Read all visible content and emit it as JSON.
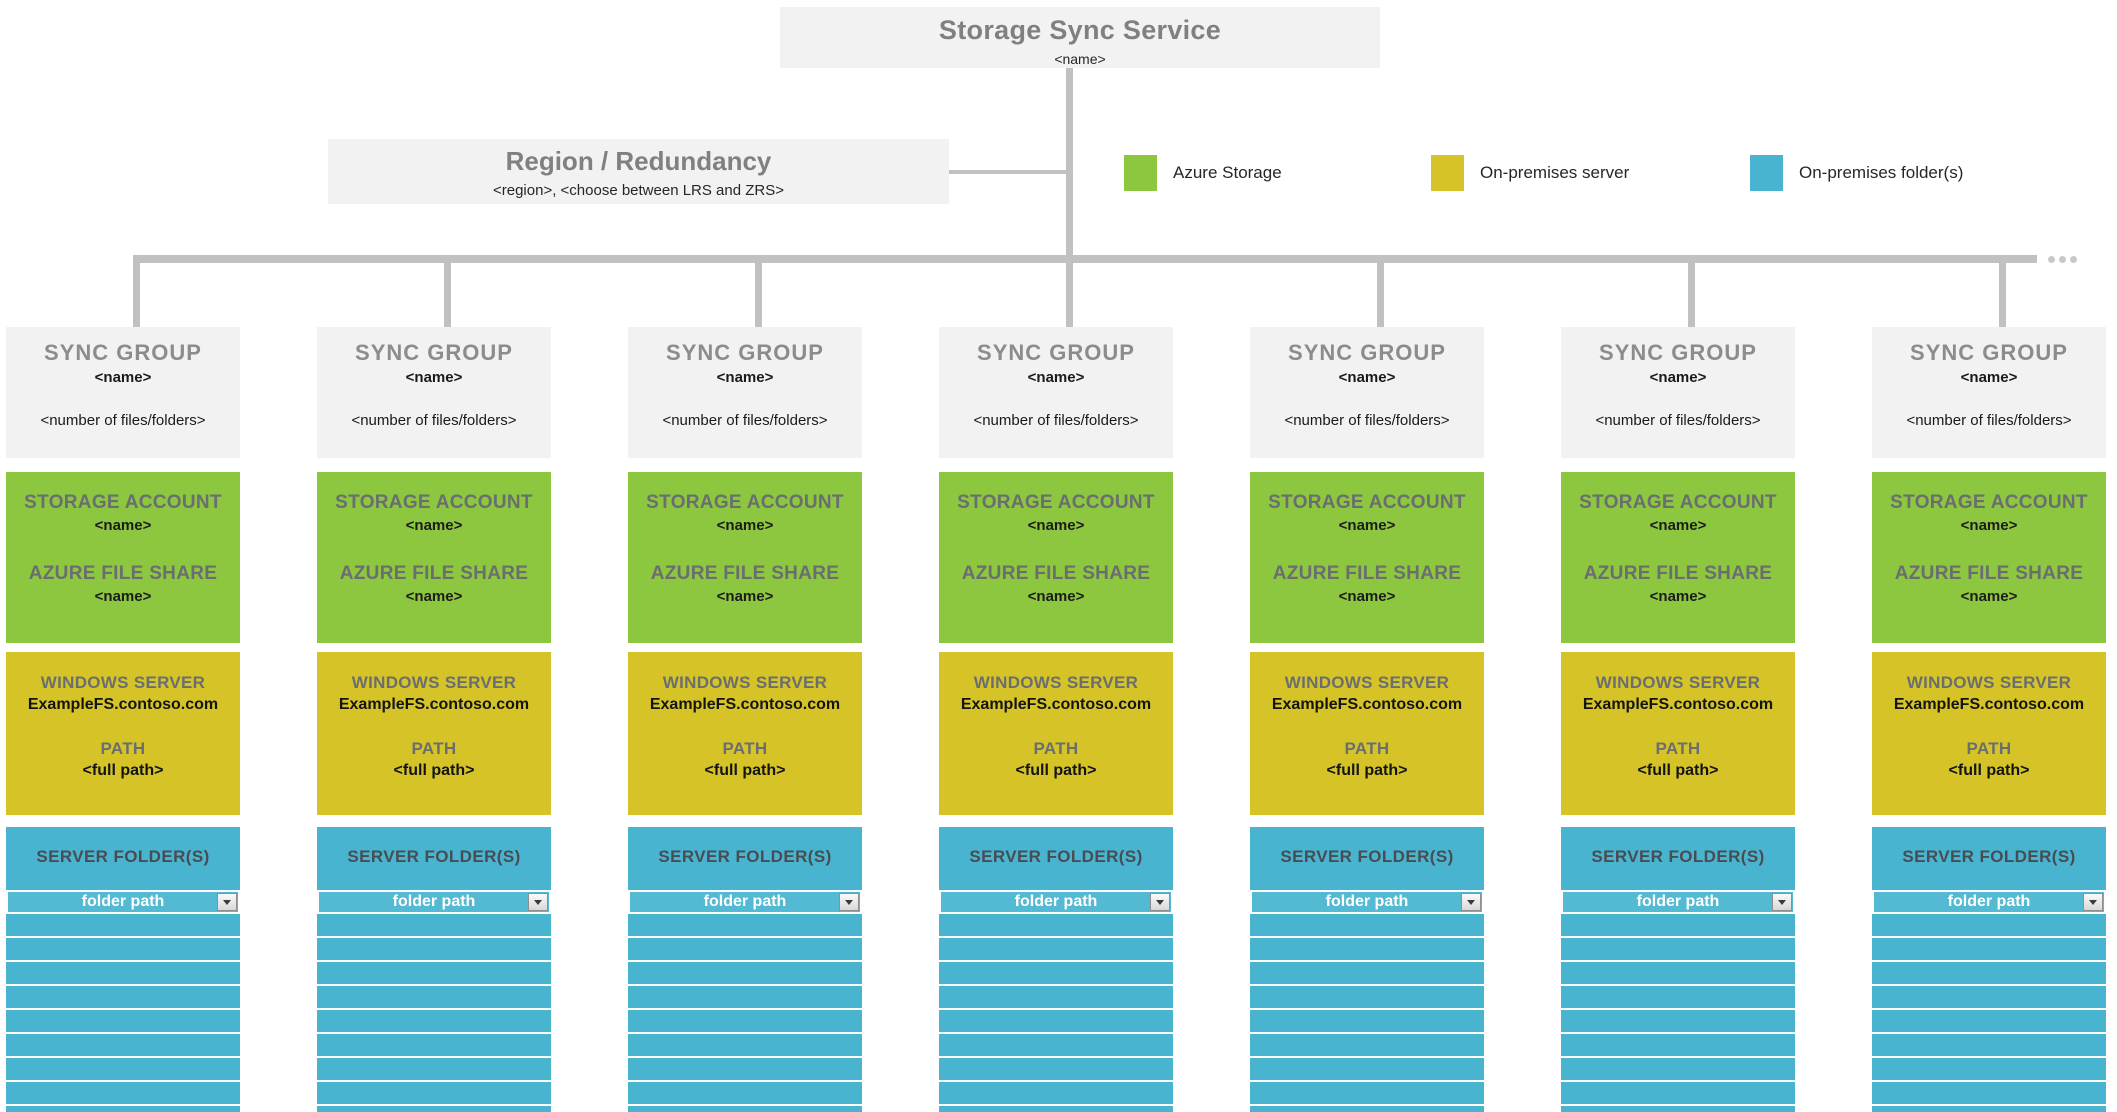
{
  "service": {
    "title": "Storage Sync Service",
    "name": "<name>"
  },
  "region": {
    "title": "Region / Redundancy",
    "subtitle": "<region>, <choose between LRS and ZRS>"
  },
  "legend": {
    "items": [
      {
        "id": "azure-storage",
        "label": "Azure Storage",
        "color": "#8DC63F"
      },
      {
        "id": "on-premises-server",
        "label": "On-premises server",
        "color": "#D5C327"
      },
      {
        "id": "on-premises-folders",
        "label": "On-premises folder(s)",
        "color": "#49B4CF"
      }
    ]
  },
  "sync_group": {
    "header": "SYNC GROUP",
    "name": "<name>",
    "files": "<number of files/folders>",
    "storage_account_label": "STORAGE ACCOUNT",
    "storage_account_name": "<name>",
    "file_share_label": "AZURE FILE SHARE",
    "file_share_name": "<name>",
    "windows_server_label": "WINDOWS SERVER",
    "windows_server_name": "ExampleFS.contoso.com",
    "path_label": "PATH",
    "path_value": "<full path>",
    "server_folders_label": "SERVER FOLDER(S)",
    "folder_cell_value": "folder path"
  },
  "sync_group_count": 7,
  "empty_folder_rows": 8,
  "overflow_dots": 3,
  "colors": {
    "azure_storage_green": "#8DC63F",
    "on_premises_server_yellow": "#D5C327",
    "on_premises_folder_teal": "#49B4CF",
    "box_background_gray": "#F2F2F2",
    "connector_gray": "#C1C1C1",
    "heading_text_gray": "#808080"
  }
}
